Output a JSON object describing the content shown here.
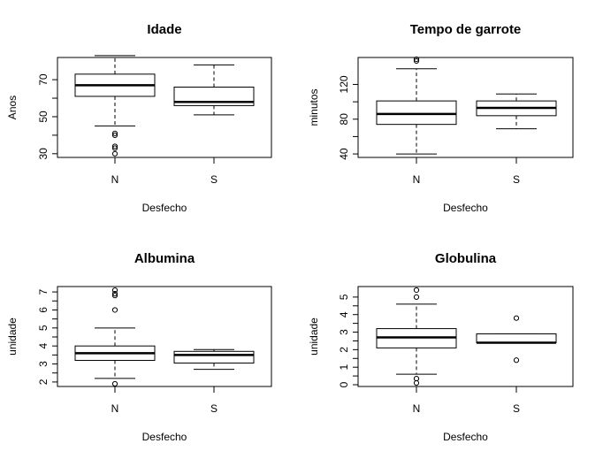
{
  "chart_data": [
    {
      "type": "box",
      "title": "Idade",
      "xlabel": "Desfecho",
      "ylabel": "Anos",
      "categories": [
        "N",
        "S"
      ],
      "yticks": [
        30,
        50,
        70
      ],
      "ylim": [
        28,
        82
      ],
      "boxes": [
        {
          "name": "N",
          "lower_whisker": 45,
          "q1": 61,
          "median": 67,
          "q3": 73,
          "upper_whisker": 83,
          "outliers": [
            30,
            33,
            34,
            40,
            41
          ]
        },
        {
          "name": "S",
          "lower_whisker": 51,
          "q1": 56,
          "median": 58,
          "q3": 66,
          "upper_whisker": 78,
          "outliers": []
        }
      ]
    },
    {
      "type": "box",
      "title": "Tempo de garrote",
      "xlabel": "Desfecho",
      "ylabel": "minutos",
      "categories": [
        "N",
        "S"
      ],
      "yticks": [
        40,
        80,
        120
      ],
      "ylim": [
        36,
        151
      ],
      "boxes": [
        {
          "name": "N",
          "lower_whisker": 40,
          "q1": 74,
          "median": 86,
          "q3": 101,
          "upper_whisker": 138,
          "outliers": [
            147,
            149
          ]
        },
        {
          "name": "S",
          "lower_whisker": 69,
          "q1": 84,
          "median": 93,
          "q3": 101,
          "upper_whisker": 109,
          "outliers": []
        }
      ]
    },
    {
      "type": "box",
      "title": "Albumina",
      "xlabel": "Desfecho",
      "ylabel": "unidade",
      "categories": [
        "N",
        "S"
      ],
      "yticks": [
        2,
        3,
        4,
        5,
        6,
        7
      ],
      "ylim": [
        1.75,
        7.3
      ],
      "boxes": [
        {
          "name": "N",
          "lower_whisker": 2.2,
          "q1": 3.2,
          "median": 3.6,
          "q3": 4.0,
          "upper_whisker": 5.0,
          "outliers": [
            1.9,
            6.0,
            6.8,
            6.9,
            7.1
          ]
        },
        {
          "name": "S",
          "lower_whisker": 2.7,
          "q1": 3.05,
          "median": 3.5,
          "q3": 3.7,
          "upper_whisker": 3.8,
          "outliers": []
        }
      ]
    },
    {
      "type": "box",
      "title": "Globulina",
      "xlabel": "Desfecho",
      "ylabel": "unidade",
      "categories": [
        "N",
        "S"
      ],
      "yticks": [
        0,
        1,
        2,
        3,
        4,
        5
      ],
      "ylim": [
        -0.1,
        5.6
      ],
      "boxes": [
        {
          "name": "N",
          "lower_whisker": 0.6,
          "q1": 2.1,
          "median": 2.7,
          "q3": 3.2,
          "upper_whisker": 4.6,
          "outliers": [
            0.1,
            0.35,
            5.0,
            5.4
          ]
        },
        {
          "name": "S",
          "lower_whisker": 2.4,
          "q1": 2.4,
          "median": 2.4,
          "q3": 2.9,
          "upper_whisker": 2.9,
          "outliers": [
            1.4,
            3.8
          ]
        }
      ]
    }
  ]
}
